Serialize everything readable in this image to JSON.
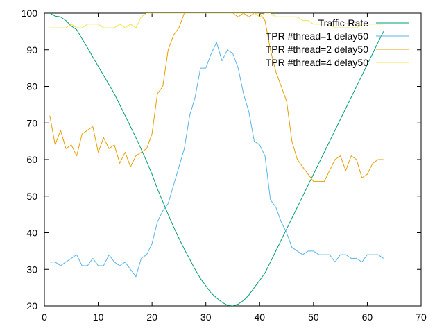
{
  "chart_data": {
    "type": "line",
    "title": "",
    "xlabel": "",
    "ylabel": "",
    "xlim": [
      0,
      70
    ],
    "ylim": [
      20,
      100
    ],
    "x_ticks": [
      0,
      10,
      20,
      30,
      40,
      50,
      60,
      70
    ],
    "y_ticks": [
      20,
      30,
      40,
      50,
      60,
      70,
      80,
      90,
      100
    ],
    "grid": false,
    "legend_position": "top-right",
    "series": [
      {
        "name": "Traffic-Rate",
        "color": "#009e73",
        "x": [
          1,
          2,
          3,
          4,
          5,
          6,
          7,
          8,
          9,
          10,
          11,
          12,
          13,
          14,
          15,
          16,
          17,
          18,
          19,
          20,
          21,
          22,
          23,
          24,
          25,
          26,
          27,
          28,
          29,
          30,
          31,
          32,
          33,
          34,
          35,
          36,
          37,
          38,
          39,
          40,
          41,
          42,
          43,
          44,
          45,
          46,
          47,
          48,
          49,
          50,
          51,
          52,
          53,
          54,
          55,
          56,
          57,
          58,
          59,
          60,
          61,
          62,
          63
        ],
        "y": [
          100,
          99.2,
          99,
          98,
          96.5,
          95.5,
          93,
          90.6,
          88,
          85.5,
          83,
          80.5,
          78,
          75,
          72,
          69,
          66,
          62.8,
          59.5,
          56,
          52,
          48.5,
          45,
          41.6,
          38.5,
          35.5,
          32.8,
          30,
          27.5,
          25.5,
          23.5,
          22.2,
          21,
          20.2,
          20,
          20.5,
          21.5,
          23,
          25,
          27,
          29,
          32,
          35,
          38,
          41,
          44,
          47,
          50,
          53,
          56,
          59,
          62,
          65,
          68,
          71,
          74,
          77,
          80,
          83,
          86,
          89,
          92,
          95
        ]
      },
      {
        "name": "TPR #thread=1 delay50",
        "color": "#56b4e9",
        "x": [
          1,
          2,
          3,
          4,
          5,
          6,
          7,
          8,
          9,
          10,
          11,
          12,
          13,
          14,
          15,
          16,
          17,
          18,
          19,
          20,
          21,
          22,
          23,
          24,
          25,
          26,
          27,
          28,
          29,
          30,
          31,
          32,
          33,
          34,
          35,
          36,
          37,
          38,
          39,
          40,
          41,
          42,
          43,
          44,
          45,
          46,
          47,
          48,
          49,
          50,
          51,
          52,
          53,
          54,
          55,
          56,
          57,
          58,
          59,
          60,
          61,
          62,
          63
        ],
        "y": [
          32,
          32,
          31,
          32,
          33,
          34,
          31,
          31,
          33,
          31,
          31,
          34,
          32,
          31,
          32,
          30,
          28,
          33,
          34,
          37,
          43,
          46,
          48,
          53,
          58,
          63,
          72,
          77,
          85,
          85,
          89,
          92,
          87,
          90,
          89,
          85,
          78,
          73,
          65,
          64,
          61,
          49,
          47,
          43,
          40,
          36,
          35,
          34,
          35,
          35,
          34,
          34,
          34,
          32,
          34,
          34,
          33,
          33,
          32,
          34,
          34,
          34,
          33
        ]
      },
      {
        "name": "TPR #thread=2 delay50",
        "color": "#e69f00",
        "x": [
          1,
          2,
          3,
          4,
          5,
          6,
          7,
          8,
          9,
          10,
          11,
          12,
          13,
          14,
          15,
          16,
          17,
          18,
          19,
          20,
          21,
          22,
          23,
          24,
          25,
          26,
          27,
          28,
          29,
          30,
          31,
          32,
          33,
          34,
          35,
          36,
          37,
          38,
          39,
          40,
          41,
          42,
          43,
          44,
          45,
          46,
          47,
          48,
          49,
          50,
          51,
          52,
          53,
          54,
          55,
          56,
          57,
          58,
          59,
          60,
          61,
          62,
          63
        ],
        "y": [
          72,
          64,
          68,
          63,
          64,
          61,
          67,
          68,
          69,
          62,
          66,
          63,
          64,
          59,
          62,
          58,
          61,
          62,
          63,
          67,
          78,
          80,
          90,
          94,
          96,
          100,
          100,
          100,
          100,
          100,
          100,
          100,
          100,
          100,
          100,
          99,
          100,
          99,
          100,
          100,
          98,
          90,
          84,
          80,
          76,
          65,
          60,
          58,
          56,
          54,
          54,
          54,
          57,
          60,
          61,
          57,
          61,
          60,
          55,
          56,
          59,
          60,
          60
        ]
      },
      {
        "name": "TPR #thread=4 delay50",
        "color": "#f0e442",
        "x": [
          1,
          2,
          3,
          4,
          5,
          6,
          7,
          8,
          9,
          10,
          11,
          12,
          13,
          14,
          15,
          16,
          17,
          18,
          19,
          20,
          21,
          22,
          23,
          24,
          25,
          26,
          27,
          28,
          29,
          30,
          31,
          32,
          33,
          34,
          35,
          36,
          37,
          38,
          39,
          40,
          41,
          42,
          43,
          44,
          45,
          46,
          47,
          48,
          49,
          50,
          51,
          52,
          53,
          54,
          55,
          56,
          57,
          58,
          59,
          60,
          61,
          62,
          63
        ],
        "y": [
          96,
          96,
          96,
          96,
          97,
          96,
          96,
          97,
          97,
          97,
          96,
          96,
          96,
          97,
          96,
          97,
          96,
          99,
          100,
          100,
          100,
          100,
          100,
          100,
          100,
          100,
          100,
          100,
          100,
          100,
          100,
          100,
          100,
          100,
          100,
          100,
          100,
          100,
          100,
          99,
          100,
          100,
          99,
          99,
          99,
          99,
          99,
          98,
          98,
          97,
          97,
          97,
          97,
          96,
          96,
          96,
          96,
          96,
          97,
          97,
          97,
          97,
          97
        ]
      }
    ]
  }
}
